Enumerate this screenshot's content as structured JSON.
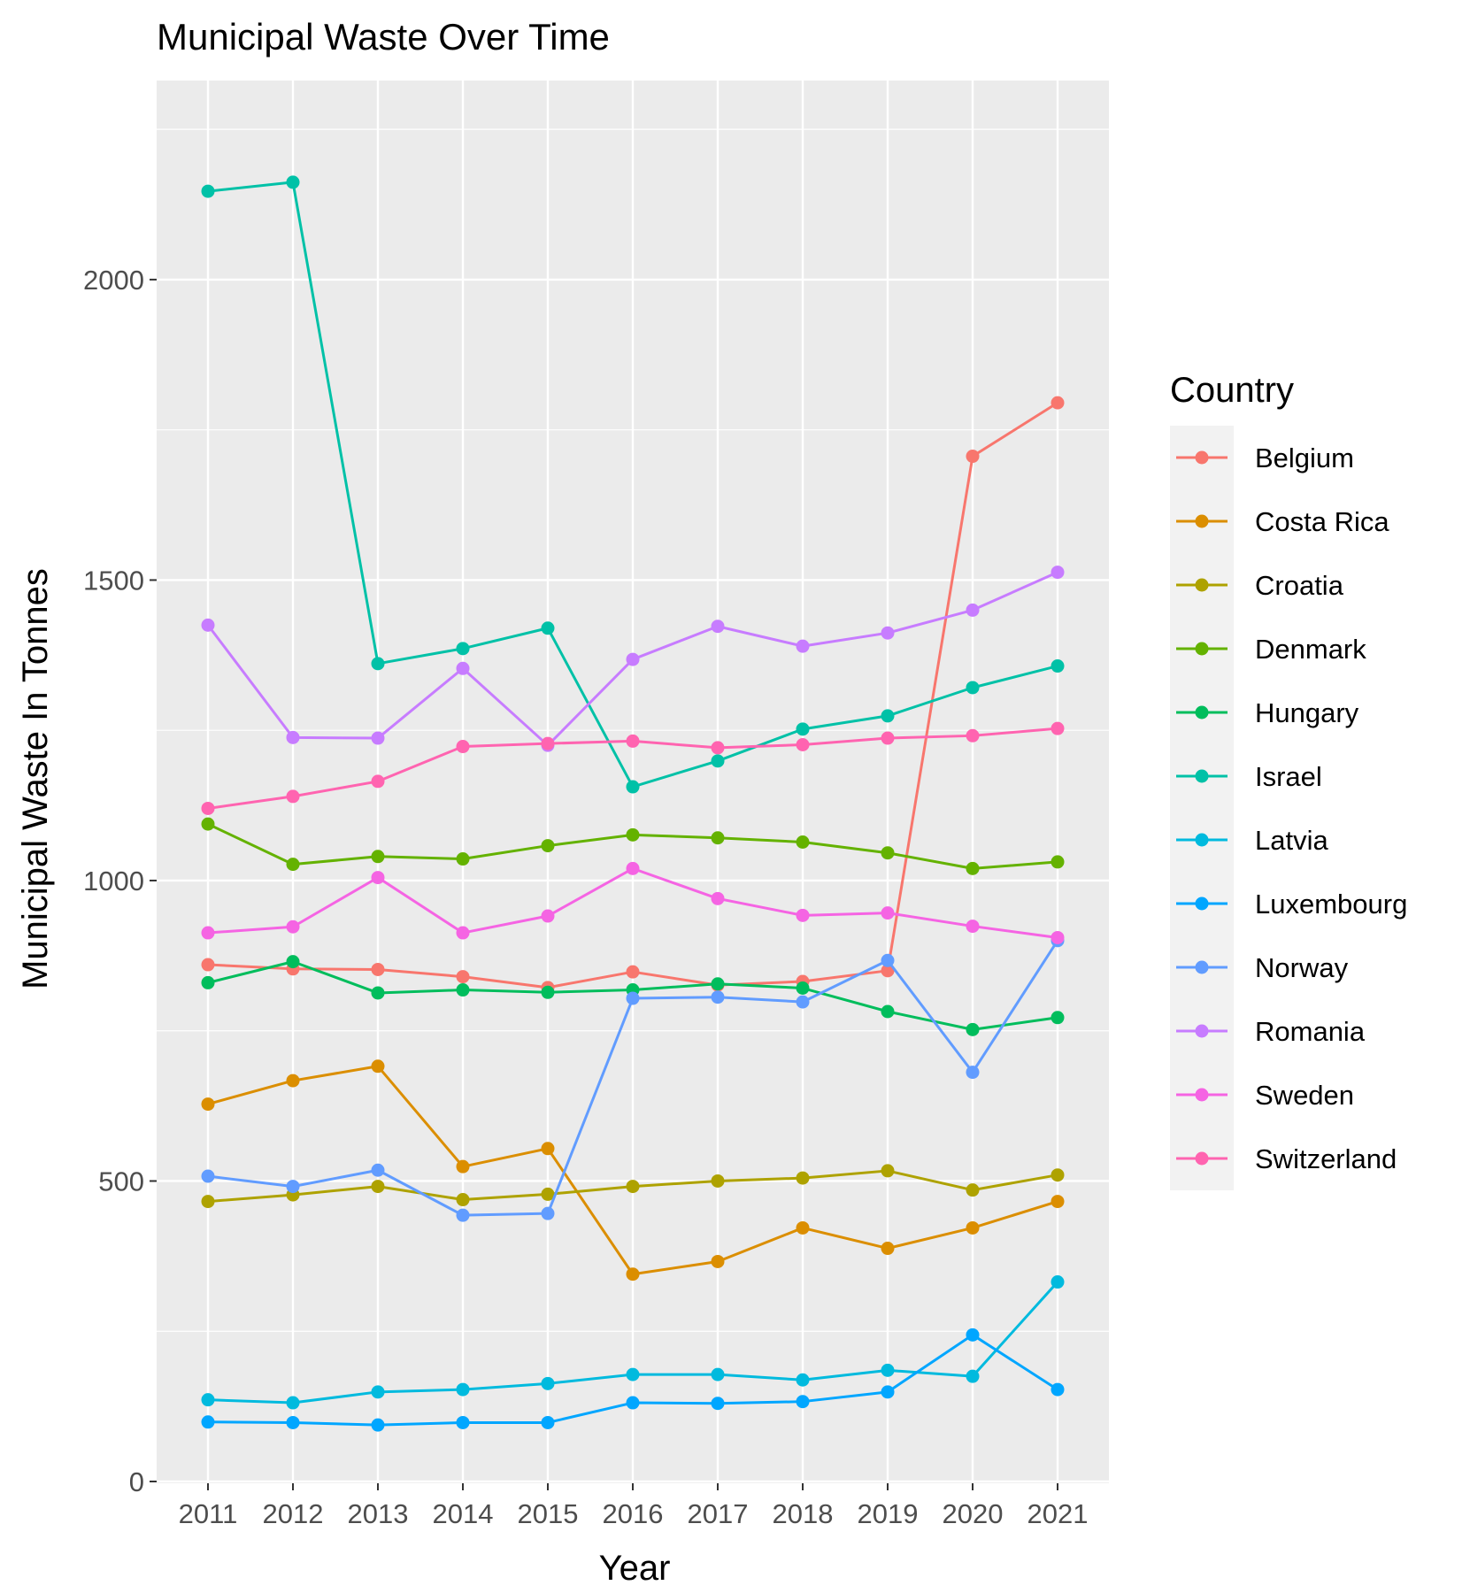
{
  "chart_data": {
    "type": "line",
    "title": "Municipal Waste Over Time",
    "xlabel": "Year",
    "ylabel": "Municipal Waste In Tonnes",
    "x": [
      "2011",
      "2012",
      "2013",
      "2014",
      "2015",
      "2016",
      "2017",
      "2018",
      "2019",
      "2020",
      "2021"
    ],
    "ylim": [
      0,
      2290
    ],
    "yticks": [
      0,
      500,
      1000,
      1500,
      2000
    ],
    "grid": true,
    "legend": {
      "title": "Country",
      "position": "right"
    },
    "series": [
      {
        "name": "Belgium",
        "color": "#F8766D",
        "values": [
          860,
          853,
          852,
          840,
          822,
          848,
          826,
          832,
          850,
          1706,
          1795
        ]
      },
      {
        "name": "Costa Rica",
        "color": "#DB8E00",
        "values": [
          628,
          667,
          691,
          524,
          554,
          345,
          366,
          422,
          388,
          422,
          466
        ]
      },
      {
        "name": "Croatia",
        "color": "#AEA200",
        "values": [
          466,
          477,
          491,
          469,
          478,
          491,
          500,
          505,
          517,
          485,
          510
        ]
      },
      {
        "name": "Denmark",
        "color": "#64B200",
        "values": [
          1094,
          1027,
          1040,
          1036,
          1058,
          1076,
          1071,
          1064,
          1046,
          1020,
          1031
        ]
      },
      {
        "name": "Hungary",
        "color": "#00BD5C",
        "values": [
          830,
          865,
          813,
          818,
          814,
          818,
          828,
          821,
          782,
          752,
          772
        ]
      },
      {
        "name": "Israel",
        "color": "#00C1A7",
        "values": [
          2147,
          2162,
          1361,
          1386,
          1420,
          1156,
          1199,
          1252,
          1274,
          1321,
          1357
        ]
      },
      {
        "name": "Latvia",
        "color": "#00BADE",
        "values": [
          136,
          131,
          149,
          153,
          163,
          178,
          178,
          169,
          185,
          175,
          332
        ]
      },
      {
        "name": "Luxembourg",
        "color": "#00A6FF",
        "values": [
          99,
          98,
          94,
          98,
          98,
          131,
          130,
          133,
          149,
          244,
          153
        ]
      },
      {
        "name": "Norway",
        "color": "#619CFF",
        "values": [
          508,
          491,
          518,
          443,
          446,
          804,
          806,
          798,
          867,
          681,
          900
        ]
      },
      {
        "name": "Romania",
        "color": "#C77CFF",
        "values": [
          1425,
          1238,
          1237,
          1353,
          1225,
          1368,
          1423,
          1390,
          1412,
          1450,
          1513
        ]
      },
      {
        "name": "Sweden",
        "color": "#F564E3",
        "values": [
          913,
          923,
          1005,
          913,
          941,
          1020,
          970,
          942,
          946,
          924,
          905
        ]
      },
      {
        "name": "Switzerland",
        "color": "#FF64B0",
        "values": [
          1120,
          1140,
          1165,
          1223,
          1228,
          1232,
          1221,
          1226,
          1237,
          1241,
          1253
        ]
      }
    ]
  }
}
